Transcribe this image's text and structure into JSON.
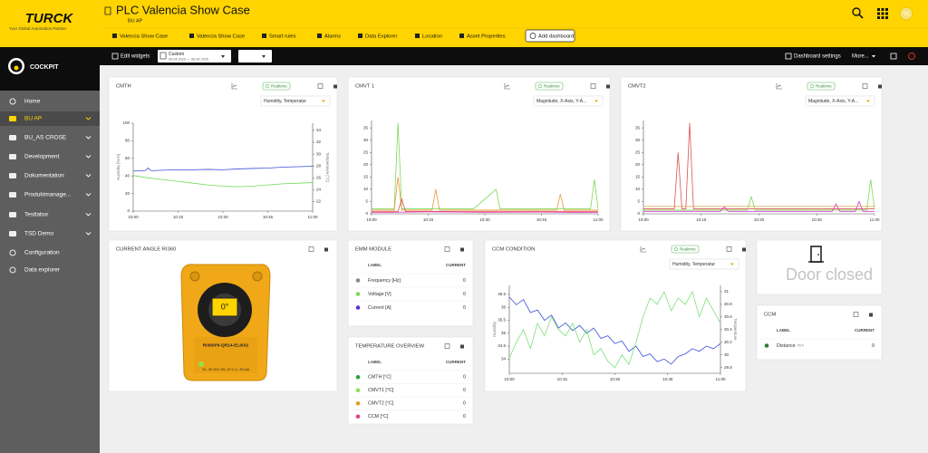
{
  "header": {
    "logo": "TURCK",
    "tagline": "Your Global Automation Partner",
    "title": "PLC Valencia Show Case",
    "breadcrumb": "BU AP",
    "avatar": "TC"
  },
  "tabs": [
    "Valencia Show Case",
    "Valencia Show Case",
    "Smart rules",
    "Alarms",
    "Data Explorer",
    "Location",
    "Asset Properties",
    "Add dashboard"
  ],
  "toolbar": {
    "edit": "Edit widgets",
    "range": "Custom",
    "range_dates": "06.04.2025 — 06.04.2025",
    "settings": "Dashboard settings",
    "more": "More..."
  },
  "sidebar": {
    "brand": "COCKPIT",
    "items": [
      "Home",
      "BU AP",
      "BU_AS CROSE",
      "Development",
      "Dokumentation",
      "Produktmanage...",
      "Testlabor",
      "TSD Demo",
      "Configuration",
      "Data explorer"
    ]
  },
  "widgets": {
    "cmth": {
      "title": "CMTH",
      "badge": "Realtime",
      "selector": "Humidity, Temperatur",
      "y_label": "Humidity [%rH]",
      "y2_label": "Temperature [°C]",
      "xlim": [
        "10:00",
        "11:00"
      ],
      "xticks": [
        "10:00",
        "10:15",
        "10:30",
        "10:45",
        "11:00"
      ],
      "ylim": [
        0,
        100
      ],
      "yticks": [
        0,
        20,
        40,
        60,
        80,
        100
      ],
      "y2lim": [
        20.4,
        35.2
      ],
      "y2ticks": [
        22,
        24,
        26,
        28,
        30,
        32,
        34
      ],
      "series": [
        {
          "color": "#3a4fd8",
          "x": [
            "10:00",
            "10:04",
            "10:05",
            "10:06",
            "10:10",
            "10:15",
            "10:20",
            "10:25",
            "10:30",
            "10:35",
            "10:40",
            "10:45",
            "10:50",
            "10:55",
            "11:00"
          ],
          "values": [
            45.5,
            46,
            49,
            46,
            46.5,
            47,
            47,
            47.5,
            47,
            48,
            48.5,
            49,
            50,
            50.5,
            51
          ]
        },
        {
          "color": "#6fdc5a",
          "axis": "y2",
          "x": [
            "10:00",
            "10:05",
            "10:10",
            "10:15",
            "10:20",
            "10:25",
            "10:30",
            "10:35",
            "10:40",
            "10:45",
            "10:50",
            "10:55",
            "11:00"
          ],
          "values": [
            26.4,
            26,
            25.7,
            25.4,
            25.1,
            24.8,
            24.6,
            24.5,
            24.6,
            24.8,
            25,
            25.1,
            25.2
          ]
        }
      ]
    },
    "cmvt1": {
      "title": "CMVT 1",
      "badge": "Realtime",
      "selector": "Magnitude, X-Axis, Y-A...",
      "xlim": [
        "10:00",
        "11:00"
      ],
      "xticks": [
        "10:00",
        "10:15",
        "10:30",
        "10:45",
        "11:00"
      ],
      "ylim": [
        0,
        38
      ],
      "yticks": [
        0,
        5,
        10,
        15,
        20,
        25,
        30,
        35
      ],
      "series": [
        {
          "color": "#7ed957",
          "x": [
            "10:00",
            "10:06",
            "10:07",
            "10:08",
            "10:20",
            "10:27",
            "10:33",
            "10:34",
            "10:58",
            "10:59",
            "11:00"
          ],
          "values": [
            2,
            2,
            37,
            2,
            2,
            2,
            10,
            2,
            2,
            14,
            2
          ]
        },
        {
          "color": "#e89a3c",
          "x": [
            "10:00",
            "10:06",
            "10:07",
            "10:08",
            "10:16",
            "10:17",
            "10:18",
            "10:49",
            "10:50",
            "10:51",
            "11:00"
          ],
          "values": [
            1.5,
            1.5,
            15,
            1.5,
            1.5,
            10,
            1.5,
            1.5,
            8,
            1.5,
            1.5
          ]
        },
        {
          "color": "#d9534f",
          "x": [
            "10:00",
            "10:07",
            "10:08",
            "10:09",
            "10:40",
            "11:00"
          ],
          "values": [
            1,
            1,
            6,
            1,
            1,
            1
          ]
        },
        {
          "color": "#e83eb8",
          "x": [
            "10:00",
            "10:15",
            "10:30",
            "10:45",
            "11:00"
          ],
          "values": [
            0.5,
            0.8,
            0.6,
            0.7,
            0.5
          ]
        }
      ]
    },
    "cmvt2": {
      "title": "CMVT2",
      "badge": "Realtime",
      "selector": "Magnitude, X-Axis, Y-A...",
      "xlim": [
        "10:00",
        "11:00"
      ],
      "xticks": [
        "10:00",
        "10:15",
        "10:30",
        "10:45",
        "11:00"
      ],
      "ylim": [
        0,
        38
      ],
      "yticks": [
        0,
        5,
        10,
        15,
        20,
        25,
        30,
        35
      ],
      "series": [
        {
          "color": "#d9534f",
          "x": [
            "10:00",
            "10:08",
            "10:09",
            "10:10",
            "10:11",
            "10:12",
            "10:13",
            "11:00"
          ],
          "values": [
            2,
            2,
            25,
            2,
            2,
            37,
            2,
            2
          ]
        },
        {
          "color": "#7ed957",
          "x": [
            "10:00",
            "10:27",
            "10:28",
            "10:29",
            "10:58",
            "10:59",
            "11:00"
          ],
          "values": [
            1.5,
            1.5,
            7,
            1.5,
            1.5,
            14,
            2
          ]
        },
        {
          "color": "#d63ad0",
          "x": [
            "10:00",
            "10:20",
            "10:21",
            "10:22",
            "10:49",
            "10:50",
            "10:51",
            "10:55",
            "10:56",
            "10:57",
            "11:00"
          ],
          "values": [
            1,
            1,
            3,
            1,
            1,
            4,
            1,
            1,
            5,
            1,
            1
          ]
        },
        {
          "color": "#e89a3c",
          "x": [
            "10:00",
            "11:00"
          ],
          "values": [
            3,
            3
          ]
        }
      ]
    },
    "ccm_condition": {
      "title": "CCM CONDITION",
      "badge": "Realtime",
      "selector": "Humidity, Temperatur",
      "y_label": "Humidity",
      "y2_label": "Temperature",
      "xlim": [
        "10:00",
        "11:00"
      ],
      "xticks": [
        "10:00",
        "10:15",
        "10:30",
        "10:45",
        "11:00"
      ],
      "ylim": [
        33.45,
        36.85
      ],
      "yticks": [
        34,
        34.5,
        35,
        35.5,
        36,
        36.5
      ],
      "y2lim": [
        29.71,
        31.1
      ],
      "y2ticks": [
        29.8,
        30,
        30.2,
        30.4,
        30.6,
        30.8,
        31
      ],
      "series": [
        {
          "color": "#3a4fd8",
          "x": [
            "10:00",
            "10:02",
            "10:04",
            "10:06",
            "10:08",
            "10:10",
            "10:12",
            "10:14",
            "10:16",
            "10:18",
            "10:20",
            "10:22",
            "10:24",
            "10:26",
            "10:28",
            "10:30",
            "10:32",
            "10:34",
            "10:36",
            "10:38",
            "10:40",
            "10:42",
            "10:44",
            "10:46",
            "10:48",
            "10:50",
            "10:52",
            "10:54",
            "10:56",
            "10:58",
            "11:00"
          ],
          "values": [
            36.4,
            36.1,
            36.3,
            35.8,
            35.9,
            35.5,
            35.7,
            35.2,
            35.4,
            35.1,
            35.3,
            35.0,
            35.2,
            34.8,
            34.9,
            34.6,
            34.7,
            34.3,
            34.5,
            34.1,
            34.2,
            33.9,
            34.0,
            33.8,
            34.1,
            34.2,
            34.4,
            34.3,
            34.5,
            34.4,
            34.6
          ]
        },
        {
          "color": "#7ee07a",
          "axis": "y2",
          "x": [
            "10:00",
            "10:02",
            "10:04",
            "10:06",
            "10:08",
            "10:10",
            "10:12",
            "10:14",
            "10:16",
            "10:18",
            "10:20",
            "10:22",
            "10:24",
            "10:26",
            "10:28",
            "10:30",
            "10:32",
            "10:34",
            "10:36",
            "10:38",
            "10:40",
            "10:42",
            "10:44",
            "10:46",
            "10:48",
            "10:50",
            "10:52",
            "10:54",
            "10:56",
            "10:58",
            "11:00"
          ],
          "values": [
            29.95,
            30.2,
            30.4,
            30.1,
            30.5,
            30.3,
            30.6,
            30.4,
            30.3,
            30.5,
            30.2,
            30.4,
            30.0,
            30.1,
            29.9,
            29.8,
            30.0,
            29.85,
            30.2,
            30.6,
            30.9,
            30.8,
            31.0,
            30.7,
            30.9,
            30.8,
            31.0,
            30.6,
            30.9,
            30.7,
            30.5
          ]
        }
      ]
    },
    "angle": {
      "title": "CURRENT ANGLE RI360",
      "display": "0°",
      "model": "RI360P0-QR14-ELi0X2",
      "spec": "15...30 VDC 0/0..10 V, 4...20 mA"
    },
    "emm": {
      "title": "EMM MODULE",
      "columns": [
        "LABEL",
        "CURRENT"
      ],
      "rows": [
        {
          "label": "Frequency [Hz]",
          "color": "#8a8a8a",
          "value": 0
        },
        {
          "label": "Voltage [V]",
          "color": "#7ed957",
          "value": 0
        },
        {
          "label": "Current [A]",
          "color": "#5b2fc9",
          "value": 0
        }
      ]
    },
    "temperature": {
      "title": "TEMPERATURE OVERVIEW",
      "columns": [
        "LABEL",
        "CURRENT"
      ],
      "rows": [
        {
          "label": "CMTH [°C]",
          "color": "#2e9e3e",
          "value": 0
        },
        {
          "label": "CMVT1 [°C]",
          "color": "#8ee04a",
          "value": 0
        },
        {
          "label": "CMVT2 [°C]",
          "color": "#d9a02a",
          "value": 0
        },
        {
          "label": "CCM [°C]",
          "color": "#e83e8c",
          "value": 0
        }
      ]
    },
    "door": {
      "text": "Door closed"
    },
    "ccm": {
      "title": "CCM",
      "columns": [
        "LABEL",
        "CURRENT"
      ],
      "rows": [
        {
          "label": "Distance",
          "unit": "mm",
          "color": "#2e7d32",
          "value": 0
        }
      ]
    }
  }
}
